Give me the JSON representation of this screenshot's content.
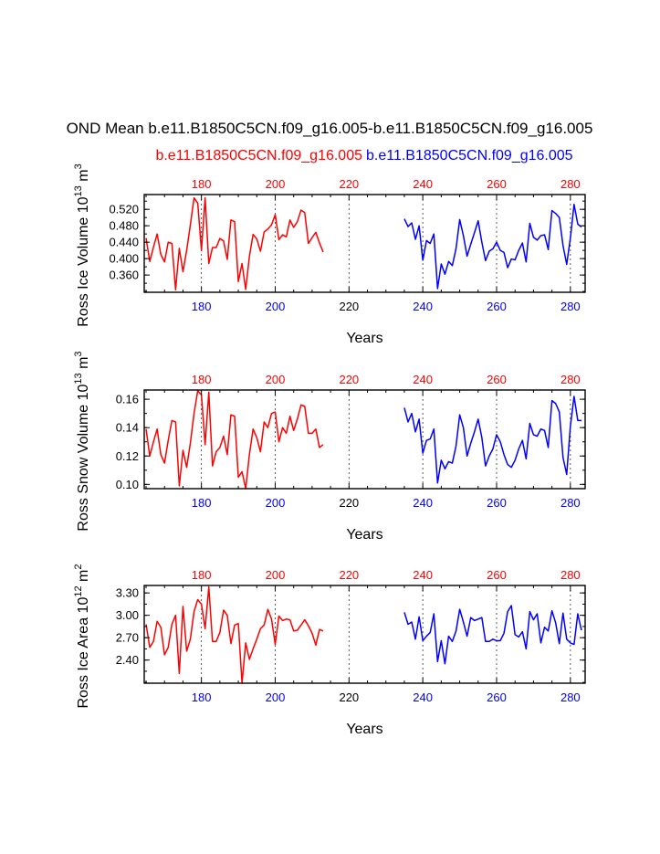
{
  "title": "OND Mean b.e11.B1850C5CN.f09_g16.005-b.e11.B1850C5CN.f09_g16.005",
  "legend": {
    "left_label": "b.e11.B1850C5CN.f09_g16.005",
    "right_label": "b.e11.B1850C5CN.f09_g16.005"
  },
  "colors": {
    "case1": "#ff0000",
    "case2": "#0000ff",
    "frame": "#000000"
  },
  "chart_data": [
    {
      "type": "line",
      "ylabel": "Ross Ice Volume 10^13 m^3",
      "xlabel": "Years",
      "xlim": [
        164.5,
        284
      ],
      "ylim": [
        0.318,
        0.556
      ],
      "yticks": [
        0.36,
        0.4,
        0.44,
        0.48,
        0.52
      ],
      "ytick_labels": [
        "0.360",
        "0.400",
        "0.440",
        "0.480",
        "0.520"
      ],
      "series": [
        {
          "x_start": 165,
          "values": [
            0.45,
            0.393,
            0.428,
            0.46,
            0.41,
            0.392,
            0.44,
            0.437,
            0.324,
            0.425,
            0.368,
            0.42,
            0.482,
            0.548,
            0.535,
            0.42,
            0.548,
            0.388,
            0.427,
            0.427,
            0.449,
            0.443,
            0.398,
            0.494,
            0.49,
            0.344,
            0.388,
            0.325,
            0.405,
            0.459,
            0.448,
            0.418,
            0.465,
            0.472,
            0.482,
            0.507,
            0.446,
            0.458,
            0.453,
            0.494,
            0.476,
            0.49,
            0.518,
            0.512,
            0.437,
            0.451,
            0.464,
            0.438,
            0.416
          ]
        },
        {
          "x_start": 235,
          "values": [
            0.497,
            0.478,
            0.487,
            0.447,
            0.48,
            0.396,
            0.444,
            0.437,
            0.46,
            0.327,
            0.387,
            0.362,
            0.393,
            0.383,
            0.424,
            0.495,
            0.456,
            0.406,
            0.435,
            0.463,
            0.492,
            0.44,
            0.395,
            0.418,
            0.424,
            0.44,
            0.42,
            0.415,
            0.378,
            0.399,
            0.397,
            0.42,
            0.438,
            0.392,
            0.486,
            0.452,
            0.445,
            0.456,
            0.458,
            0.422,
            0.517,
            0.51,
            0.5,
            0.432,
            0.386,
            0.45,
            0.532,
            0.484,
            0.477
          ]
        }
      ]
    },
    {
      "type": "line",
      "ylabel": "Ross Snow Volume 10^13 m^3",
      "xlabel": "Years",
      "xlim": [
        164.5,
        284
      ],
      "ylim": [
        0.097,
        0.1665
      ],
      "yticks": [
        0.1,
        0.12,
        0.14,
        0.16
      ],
      "ytick_labels": [
        "0.10",
        "0.12",
        "0.14",
        "0.16"
      ],
      "series": [
        {
          "x_start": 165,
          "values": [
            0.139,
            0.12,
            0.13,
            0.139,
            0.121,
            0.115,
            0.131,
            0.145,
            0.144,
            0.099,
            0.124,
            0.112,
            0.129,
            0.15,
            0.166,
            0.163,
            0.128,
            0.165,
            0.113,
            0.123,
            0.126,
            0.134,
            0.121,
            0.149,
            0.148,
            0.105,
            0.109,
            0.097,
            0.121,
            0.139,
            0.133,
            0.123,
            0.144,
            0.14,
            0.15,
            0.151,
            0.13,
            0.14,
            0.136,
            0.148,
            0.138,
            0.146,
            0.156,
            0.155,
            0.136,
            0.136,
            0.139,
            0.126,
            0.128
          ]
        },
        {
          "x_start": 235,
          "values": [
            0.154,
            0.144,
            0.15,
            0.137,
            0.146,
            0.122,
            0.131,
            0.132,
            0.139,
            0.101,
            0.117,
            0.111,
            0.116,
            0.115,
            0.127,
            0.149,
            0.14,
            0.12,
            0.129,
            0.137,
            0.146,
            0.133,
            0.113,
            0.12,
            0.125,
            0.135,
            0.13,
            0.121,
            0.114,
            0.112,
            0.117,
            0.125,
            0.131,
            0.118,
            0.143,
            0.135,
            0.134,
            0.139,
            0.138,
            0.126,
            0.159,
            0.157,
            0.151,
            0.119,
            0.107,
            0.141,
            0.162,
            0.145,
            0.145
          ]
        }
      ]
    },
    {
      "type": "line",
      "ylabel": "Ross Ice Area 10^12 m^2",
      "xlabel": "Years",
      "xlim": [
        164.5,
        284
      ],
      "ylim": [
        2.09,
        3.4
      ],
      "yticks": [
        2.4,
        2.7,
        3.0,
        3.3
      ],
      "ytick_labels": [
        "2.40",
        "2.70",
        "3.00",
        "3.30"
      ],
      "series": [
        {
          "x_start": 165,
          "values": [
            2.88,
            2.57,
            2.65,
            2.92,
            2.84,
            2.47,
            2.57,
            2.88,
            3.0,
            2.22,
            3.12,
            2.52,
            2.68,
            3.05,
            3.21,
            3.15,
            2.82,
            3.38,
            2.65,
            2.65,
            2.77,
            3.07,
            3.0,
            2.62,
            2.87,
            2.89,
            2.09,
            2.63,
            2.41,
            2.55,
            2.68,
            2.82,
            2.87,
            3.08,
            2.95,
            2.61,
            2.99,
            2.93,
            2.95,
            2.94,
            2.79,
            2.8,
            2.87,
            2.94,
            2.86,
            2.76,
            2.6,
            2.81,
            2.79
          ]
        },
        {
          "x_start": 235,
          "values": [
            3.04,
            2.88,
            2.91,
            2.68,
            2.98,
            2.66,
            2.72,
            2.77,
            3.02,
            2.38,
            2.66,
            2.35,
            2.72,
            2.65,
            2.79,
            3.08,
            2.91,
            2.72,
            2.97,
            2.93,
            2.95,
            2.97,
            2.65,
            2.65,
            2.68,
            2.66,
            2.66,
            2.76,
            3.05,
            3.13,
            2.74,
            2.71,
            2.78,
            2.55,
            3.05,
            2.94,
            3.02,
            2.63,
            2.84,
            2.79,
            3.06,
            2.9,
            2.62,
            3.03,
            2.68,
            2.63,
            2.61,
            3.02,
            2.8
          ]
        }
      ]
    }
  ],
  "top_axis": {
    "ticks": [
      180,
      200,
      220,
      240,
      260,
      280
    ],
    "labels": [
      "180",
      "200",
      "220",
      "240",
      "260",
      "280"
    ]
  },
  "bottom_axis": {
    "ticks": [
      180,
      200,
      220,
      240,
      260,
      280
    ],
    "labels": [
      "180",
      "200",
      "220",
      "240",
      "260",
      "280"
    ]
  },
  "dashed_lines_at": [
    180,
    200,
    220,
    240,
    260,
    280
  ]
}
